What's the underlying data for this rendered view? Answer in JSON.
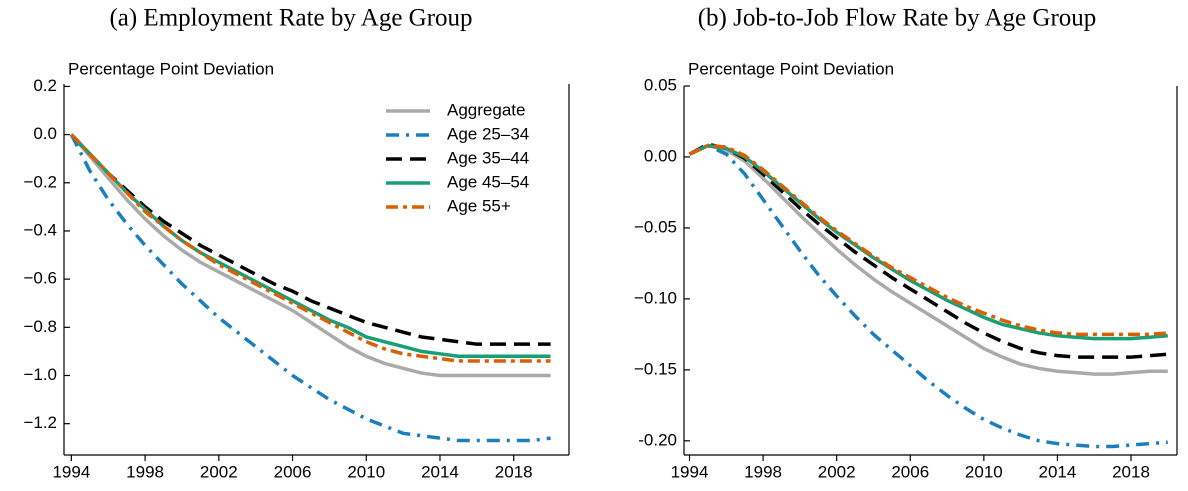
{
  "chart_data": [
    {
      "type": "line",
      "title": "(a) Employment Rate by Age Group",
      "ylabel": "Percentage Point Deviation",
      "x": [
        1994,
        1995,
        1996,
        1997,
        1998,
        1999,
        2000,
        2001,
        2002,
        2003,
        2004,
        2005,
        2006,
        2007,
        2008,
        2009,
        2010,
        2011,
        2012,
        2013,
        2014,
        2015,
        2016,
        2017,
        2018,
        2019,
        2020
      ],
      "xlim": [
        1993.6,
        2021
      ],
      "xticks": [
        1994,
        1998,
        2002,
        2006,
        2010,
        2014,
        2018
      ],
      "ylim": [
        -1.33,
        0.21
      ],
      "yticks": [
        0.2,
        {
          "value": 0,
          "label": "0.0"
        },
        {
          "value": -0.2,
          "label": "−0.2"
        },
        {
          "value": -0.4,
          "label": "−0.4"
        },
        {
          "value": -0.6,
          "label": "−0.6"
        },
        {
          "value": -0.8,
          "label": "−0.8"
        },
        {
          "value": -1.0,
          "label": "−1.0"
        },
        {
          "value": -1.2,
          "label": "−1.2"
        }
      ],
      "legend": "upper right",
      "series": [
        {
          "name": "Aggregate",
          "color": "#aaaaaa",
          "style": "solid",
          "values": [
            0,
            -0.09,
            -0.18,
            -0.27,
            -0.35,
            -0.42,
            -0.48,
            -0.53,
            -0.57,
            -0.61,
            -0.65,
            -0.69,
            -0.73,
            -0.78,
            -0.83,
            -0.88,
            -0.92,
            -0.95,
            -0.97,
            -0.99,
            -1.0,
            -1.0,
            -1.0,
            -1.0,
            -1.0,
            -1.0,
            -1.0
          ]
        },
        {
          "name": "Age 25–34",
          "color": "#1b7fbd",
          "style": "dashdot",
          "values": [
            0,
            -0.15,
            -0.27,
            -0.37,
            -0.46,
            -0.54,
            -0.62,
            -0.69,
            -0.76,
            -0.82,
            -0.88,
            -0.94,
            -1.0,
            -1.05,
            -1.1,
            -1.14,
            -1.18,
            -1.21,
            -1.24,
            -1.25,
            -1.26,
            -1.27,
            -1.27,
            -1.27,
            -1.27,
            -1.27,
            -1.26
          ]
        },
        {
          "name": "Age 35–44",
          "color": "#000000",
          "style": "dashed",
          "values": [
            0,
            -0.08,
            -0.16,
            -0.23,
            -0.3,
            -0.36,
            -0.41,
            -0.46,
            -0.5,
            -0.54,
            -0.58,
            -0.62,
            -0.65,
            -0.69,
            -0.72,
            -0.75,
            -0.78,
            -0.8,
            -0.82,
            -0.84,
            -0.85,
            -0.86,
            -0.87,
            -0.87,
            -0.87,
            -0.87,
            -0.87
          ]
        },
        {
          "name": "Age 45–54",
          "color": "#1a9e76",
          "style": "solid",
          "values": [
            0,
            -0.08,
            -0.16,
            -0.24,
            -0.31,
            -0.38,
            -0.44,
            -0.49,
            -0.53,
            -0.57,
            -0.61,
            -0.65,
            -0.69,
            -0.73,
            -0.77,
            -0.8,
            -0.84,
            -0.86,
            -0.88,
            -0.9,
            -0.91,
            -0.92,
            -0.92,
            -0.92,
            -0.92,
            -0.92,
            -0.92
          ]
        },
        {
          "name": "Age 55+",
          "color": "#d95f02",
          "style": "dashdot2",
          "values": [
            0,
            -0.08,
            -0.16,
            -0.24,
            -0.32,
            -0.38,
            -0.44,
            -0.49,
            -0.54,
            -0.58,
            -0.62,
            -0.66,
            -0.7,
            -0.74,
            -0.78,
            -0.82,
            -0.86,
            -0.89,
            -0.91,
            -0.92,
            -0.93,
            -0.94,
            -0.94,
            -0.94,
            -0.94,
            -0.94,
            -0.94
          ]
        }
      ]
    },
    {
      "type": "line",
      "title": "(b) Job-to-Job Flow Rate by Age Group",
      "ylabel": "Percentage Point Deviation",
      "x": [
        1994,
        1995,
        1996,
        1997,
        1998,
        1999,
        2000,
        2001,
        2002,
        2003,
        2004,
        2005,
        2006,
        2007,
        2008,
        2009,
        2010,
        2011,
        2012,
        2013,
        2014,
        2015,
        2016,
        2017,
        2018,
        2019,
        2020
      ],
      "xlim": [
        1993.7,
        2020.5
      ],
      "xticks": [
        1994,
        1998,
        2002,
        2006,
        2010,
        2014,
        2018
      ],
      "ylim": [
        -0.21,
        0.05
      ],
      "yticks": [
        0.05,
        {
          "value": 0,
          "label": "0.00"
        },
        {
          "value": -0.05,
          "label": "−0.05"
        },
        {
          "value": -0.1,
          "label": "−0.10"
        },
        {
          "value": -0.15,
          "label": "−0.15"
        },
        {
          "value": -0.2,
          "label": "-0.20"
        }
      ],
      "series": [
        {
          "color": "#aaaaaa",
          "style": "solid",
          "values": [
            0.002,
            0.008,
            0.005,
            -0.003,
            -0.015,
            -0.028,
            -0.041,
            -0.053,
            -0.065,
            -0.076,
            -0.086,
            -0.095,
            -0.103,
            -0.111,
            -0.119,
            -0.127,
            -0.135,
            -0.141,
            -0.146,
            -0.149,
            -0.151,
            -0.152,
            -0.153,
            -0.153,
            -0.152,
            -0.151,
            -0.151
          ]
        },
        {
          "color": "#1b7fbd",
          "style": "dashdot",
          "values": [
            0.002,
            0.008,
            0.002,
            -0.012,
            -0.03,
            -0.048,
            -0.066,
            -0.083,
            -0.098,
            -0.112,
            -0.125,
            -0.136,
            -0.147,
            -0.158,
            -0.168,
            -0.177,
            -0.185,
            -0.191,
            -0.196,
            -0.2,
            -0.202,
            -0.203,
            -0.204,
            -0.204,
            -0.203,
            -0.202,
            -0.201
          ]
        },
        {
          "color": "#000000",
          "style": "dashed",
          "values": [
            0.002,
            0.009,
            0.006,
            -0.001,
            -0.012,
            -0.024,
            -0.036,
            -0.047,
            -0.057,
            -0.067,
            -0.076,
            -0.085,
            -0.093,
            -0.101,
            -0.109,
            -0.117,
            -0.124,
            -0.13,
            -0.135,
            -0.138,
            -0.14,
            -0.141,
            -0.141,
            -0.141,
            -0.141,
            -0.14,
            -0.139
          ]
        },
        {
          "color": "#1a9e76",
          "style": "solid",
          "values": [
            0.002,
            0.008,
            0.006,
            0.0,
            -0.01,
            -0.021,
            -0.032,
            -0.043,
            -0.053,
            -0.062,
            -0.071,
            -0.079,
            -0.087,
            -0.094,
            -0.101,
            -0.107,
            -0.113,
            -0.118,
            -0.121,
            -0.124,
            -0.126,
            -0.127,
            -0.128,
            -0.128,
            -0.128,
            -0.127,
            -0.126
          ]
        },
        {
          "color": "#d95f02",
          "style": "dashdot2",
          "values": [
            0.002,
            0.008,
            0.007,
            0.001,
            -0.009,
            -0.02,
            -0.031,
            -0.042,
            -0.052,
            -0.061,
            -0.07,
            -0.078,
            -0.085,
            -0.092,
            -0.099,
            -0.105,
            -0.11,
            -0.115,
            -0.119,
            -0.122,
            -0.124,
            -0.125,
            -0.125,
            -0.125,
            -0.125,
            -0.125,
            -0.124
          ]
        }
      ]
    }
  ]
}
